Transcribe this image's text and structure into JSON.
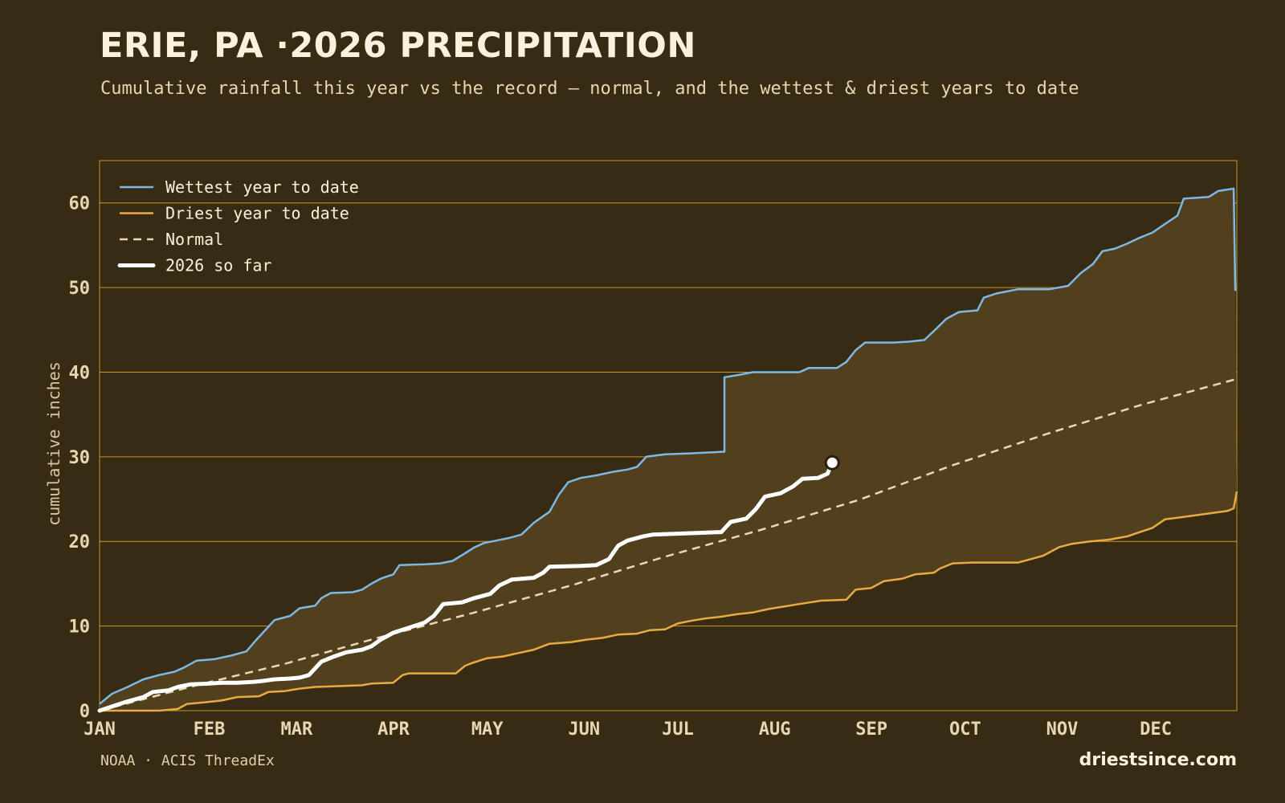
{
  "title": "ERIE, PA ·2026 PRECIPITATION",
  "subtitle": "Cumulative rainfall this year vs the record — normal, and the wettest & driest years to date",
  "source": "NOAA · ACIS ThreadEx",
  "brand": "driestsince.com",
  "colors": {
    "background": "#382b13",
    "band_fill": "#523f1e",
    "grid": "#c9952f",
    "wettest": "#7cb9e4",
    "driest": "#e8ab44",
    "normal": "#ead8b2",
    "current": "#ffffff"
  },
  "chart_data": {
    "type": "line",
    "xlabel": "",
    "ylabel": "cumulative inches",
    "ylim": [
      0,
      65
    ],
    "yticks": [
      0,
      10,
      20,
      30,
      40,
      50,
      60
    ],
    "x_unit": "day of year",
    "xlim": [
      1,
      365
    ],
    "month_ticks": [
      {
        "label": "JAN",
        "day": 1
      },
      {
        "label": "FEB",
        "day": 32
      },
      {
        "label": "MAR",
        "day": 60
      },
      {
        "label": "APR",
        "day": 91
      },
      {
        "label": "MAY",
        "day": 121
      },
      {
        "label": "JUN",
        "day": 152
      },
      {
        "label": "JUL",
        "day": 182
      },
      {
        "label": "AUG",
        "day": 213
      },
      {
        "label": "SEP",
        "day": 244
      },
      {
        "label": "OCT",
        "day": 274
      },
      {
        "label": "NOV",
        "day": 305
      },
      {
        "label": "DEC",
        "day": 335
      }
    ],
    "grid": true,
    "legend_position": "top-left",
    "legend": [
      {
        "key": "wettest",
        "label": "Wettest year to date"
      },
      {
        "key": "driest",
        "label": "Driest year to date"
      },
      {
        "key": "normal",
        "label": "Normal"
      },
      {
        "key": "current",
        "label": "2026 so far"
      }
    ],
    "series": [
      {
        "key": "wettest",
        "name": "Wettest year to date",
        "points": [
          [
            1,
            0.8
          ],
          [
            5,
            2
          ],
          [
            10,
            2.8
          ],
          [
            15,
            3.7
          ],
          [
            20,
            4.2
          ],
          [
            25,
            4.6
          ],
          [
            28,
            5.1
          ],
          [
            32,
            5.9
          ],
          [
            38,
            6.1
          ],
          [
            43,
            6.5
          ],
          [
            48,
            7.0
          ],
          [
            51,
            8.3
          ],
          [
            54,
            9.5
          ],
          [
            57,
            10.7
          ],
          [
            62,
            11.2
          ],
          [
            65,
            12.1
          ],
          [
            70,
            12.4
          ],
          [
            72,
            13.3
          ],
          [
            75,
            13.9
          ],
          [
            82,
            14.0
          ],
          [
            85,
            14.3
          ],
          [
            88,
            15.0
          ],
          [
            91,
            15.6
          ],
          [
            95,
            16.1
          ],
          [
            97,
            17.2
          ],
          [
            105,
            17.3
          ],
          [
            110,
            17.4
          ],
          [
            114,
            17.7
          ],
          [
            118,
            18.6
          ],
          [
            121,
            19.3
          ],
          [
            124,
            19.8
          ],
          [
            128,
            20.1
          ],
          [
            132,
            20.4
          ],
          [
            136,
            20.8
          ],
          [
            140,
            22.2
          ],
          [
            145,
            23.5
          ],
          [
            148,
            25.5
          ],
          [
            151,
            27.0
          ],
          [
            155,
            27.5
          ],
          [
            160,
            27.8
          ],
          [
            165,
            28.2
          ],
          [
            170,
            28.5
          ],
          [
            173,
            28.8
          ],
          [
            176,
            30.0
          ],
          [
            182,
            30.3
          ],
          [
            190,
            30.4
          ],
          [
            195,
            30.5
          ],
          [
            201,
            30.6
          ],
          [
            201,
            39.4
          ],
          [
            206,
            39.7
          ],
          [
            210,
            40.0
          ],
          [
            215,
            40.0
          ],
          [
            225,
            40.0
          ],
          [
            228,
            40.5
          ],
          [
            237,
            40.5
          ],
          [
            240,
            41.2
          ],
          [
            243,
            42.6
          ],
          [
            246,
            43.5
          ],
          [
            255,
            43.5
          ],
          [
            260,
            43.6
          ],
          [
            265,
            43.8
          ],
          [
            269,
            45.2
          ],
          [
            272,
            46.3
          ],
          [
            276,
            47.1
          ],
          [
            282,
            47.3
          ],
          [
            284,
            48.8
          ],
          [
            288,
            49.3
          ],
          [
            295,
            49.8
          ],
          [
            305,
            49.8
          ],
          [
            311,
            50.2
          ],
          [
            315,
            51.7
          ],
          [
            319,
            52.8
          ],
          [
            322,
            54.3
          ],
          [
            326,
            54.6
          ],
          [
            330,
            55.2
          ],
          [
            334,
            55.9
          ],
          [
            338,
            56.5
          ],
          [
            342,
            57.5
          ],
          [
            346,
            58.5
          ],
          [
            348,
            60.5
          ],
          [
            356,
            60.7
          ],
          [
            359,
            61.4
          ],
          [
            364,
            61.7
          ],
          [
            364.5,
            49.6
          ]
        ]
      },
      {
        "key": "driest",
        "name": "Driest year to date",
        "points": [
          [
            1,
            0.0
          ],
          [
            20,
            0.0
          ],
          [
            26,
            0.2
          ],
          [
            29,
            0.8
          ],
          [
            35,
            1.0
          ],
          [
            40,
            1.2
          ],
          [
            45,
            1.6
          ],
          [
            52,
            1.7
          ],
          [
            55,
            2.2
          ],
          [
            60,
            2.3
          ],
          [
            65,
            2.6
          ],
          [
            70,
            2.8
          ],
          [
            78,
            2.9
          ],
          [
            85,
            3.0
          ],
          [
            88,
            3.2
          ],
          [
            95,
            3.3
          ],
          [
            98,
            4.2
          ],
          [
            100,
            4.4
          ],
          [
            108,
            4.4
          ],
          [
            115,
            4.4
          ],
          [
            118,
            5.3
          ],
          [
            120,
            5.6
          ],
          [
            125,
            6.2
          ],
          [
            130,
            6.4
          ],
          [
            135,
            6.8
          ],
          [
            140,
            7.2
          ],
          [
            145,
            7.9
          ],
          [
            152,
            8.1
          ],
          [
            157,
            8.4
          ],
          [
            162,
            8.6
          ],
          [
            167,
            9.0
          ],
          [
            173,
            9.1
          ],
          [
            177,
            9.5
          ],
          [
            182,
            9.6
          ],
          [
            186,
            10.3
          ],
          [
            190,
            10.6
          ],
          [
            195,
            10.9
          ],
          [
            200,
            11.1
          ],
          [
            205,
            11.4
          ],
          [
            210,
            11.6
          ],
          [
            215,
            12.0
          ],
          [
            220,
            12.3
          ],
          [
            225,
            12.6
          ],
          [
            232,
            13.0
          ],
          [
            240,
            13.1
          ],
          [
            243,
            14.3
          ],
          [
            248,
            14.5
          ],
          [
            252,
            15.3
          ],
          [
            258,
            15.6
          ],
          [
            262,
            16.1
          ],
          [
            268,
            16.3
          ],
          [
            270,
            16.8
          ],
          [
            274,
            17.4
          ],
          [
            280,
            17.5
          ],
          [
            295,
            17.5
          ],
          [
            298,
            17.8
          ],
          [
            303,
            18.3
          ],
          [
            308,
            19.3
          ],
          [
            312,
            19.7
          ],
          [
            318,
            20.0
          ],
          [
            324,
            20.2
          ],
          [
            330,
            20.6
          ],
          [
            334,
            21.1
          ],
          [
            338,
            21.6
          ],
          [
            342,
            22.6
          ],
          [
            346,
            22.8
          ],
          [
            352,
            23.1
          ],
          [
            358,
            23.4
          ],
          [
            362,
            23.6
          ],
          [
            364,
            23.9
          ],
          [
            365,
            25.9
          ]
        ]
      },
      {
        "key": "normal",
        "name": "Normal",
        "points": [
          [
            1,
            0.0
          ],
          [
            32,
            3.0
          ],
          [
            60,
            5.5
          ],
          [
            91,
            8.7
          ],
          [
            121,
            11.6
          ],
          [
            152,
            14.8
          ],
          [
            182,
            18.2
          ],
          [
            213,
            21.4
          ],
          [
            244,
            24.9
          ],
          [
            274,
            29.0
          ],
          [
            305,
            32.8
          ],
          [
            335,
            36.2
          ],
          [
            365,
            39.2
          ]
        ]
      },
      {
        "key": "current",
        "name": "2026 so far",
        "points": [
          [
            1,
            0.0
          ],
          [
            5,
            0.5
          ],
          [
            10,
            1.1
          ],
          [
            15,
            1.6
          ],
          [
            18,
            2.2
          ],
          [
            23,
            2.4
          ],
          [
            26,
            2.8
          ],
          [
            30,
            3.1
          ],
          [
            36,
            3.2
          ],
          [
            40,
            3.3
          ],
          [
            45,
            3.3
          ],
          [
            50,
            3.4
          ],
          [
            53,
            3.5
          ],
          [
            57,
            3.7
          ],
          [
            62,
            3.8
          ],
          [
            65,
            3.9
          ],
          [
            68,
            4.2
          ],
          [
            70,
            5.0
          ],
          [
            72,
            5.8
          ],
          [
            76,
            6.4
          ],
          [
            80,
            6.9
          ],
          [
            85,
            7.2
          ],
          [
            88,
            7.6
          ],
          [
            91,
            8.4
          ],
          [
            95,
            9.2
          ],
          [
            100,
            9.8
          ],
          [
            105,
            10.4
          ],
          [
            108,
            11.2
          ],
          [
            111,
            12.6
          ],
          [
            117,
            12.8
          ],
          [
            121,
            13.3
          ],
          [
            126,
            13.8
          ],
          [
            129,
            14.8
          ],
          [
            133,
            15.5
          ],
          [
            140,
            15.7
          ],
          [
            143,
            16.3
          ],
          [
            145,
            17.0
          ],
          [
            155,
            17.1
          ],
          [
            160,
            17.2
          ],
          [
            164,
            17.9
          ],
          [
            167,
            19.5
          ],
          [
            170,
            20.1
          ],
          [
            175,
            20.6
          ],
          [
            178,
            20.8
          ],
          [
            185,
            20.9
          ],
          [
            200,
            21.1
          ],
          [
            203,
            22.3
          ],
          [
            208,
            22.7
          ],
          [
            211,
            23.8
          ],
          [
            214,
            25.3
          ],
          [
            219,
            25.7
          ],
          [
            223,
            26.5
          ],
          [
            226,
            27.4
          ],
          [
            231,
            27.5
          ],
          [
            234,
            28.0
          ],
          [
            235.5,
            29.3
          ]
        ]
      }
    ],
    "current_marker": {
      "day": 235.5,
      "value": 29.3
    }
  }
}
